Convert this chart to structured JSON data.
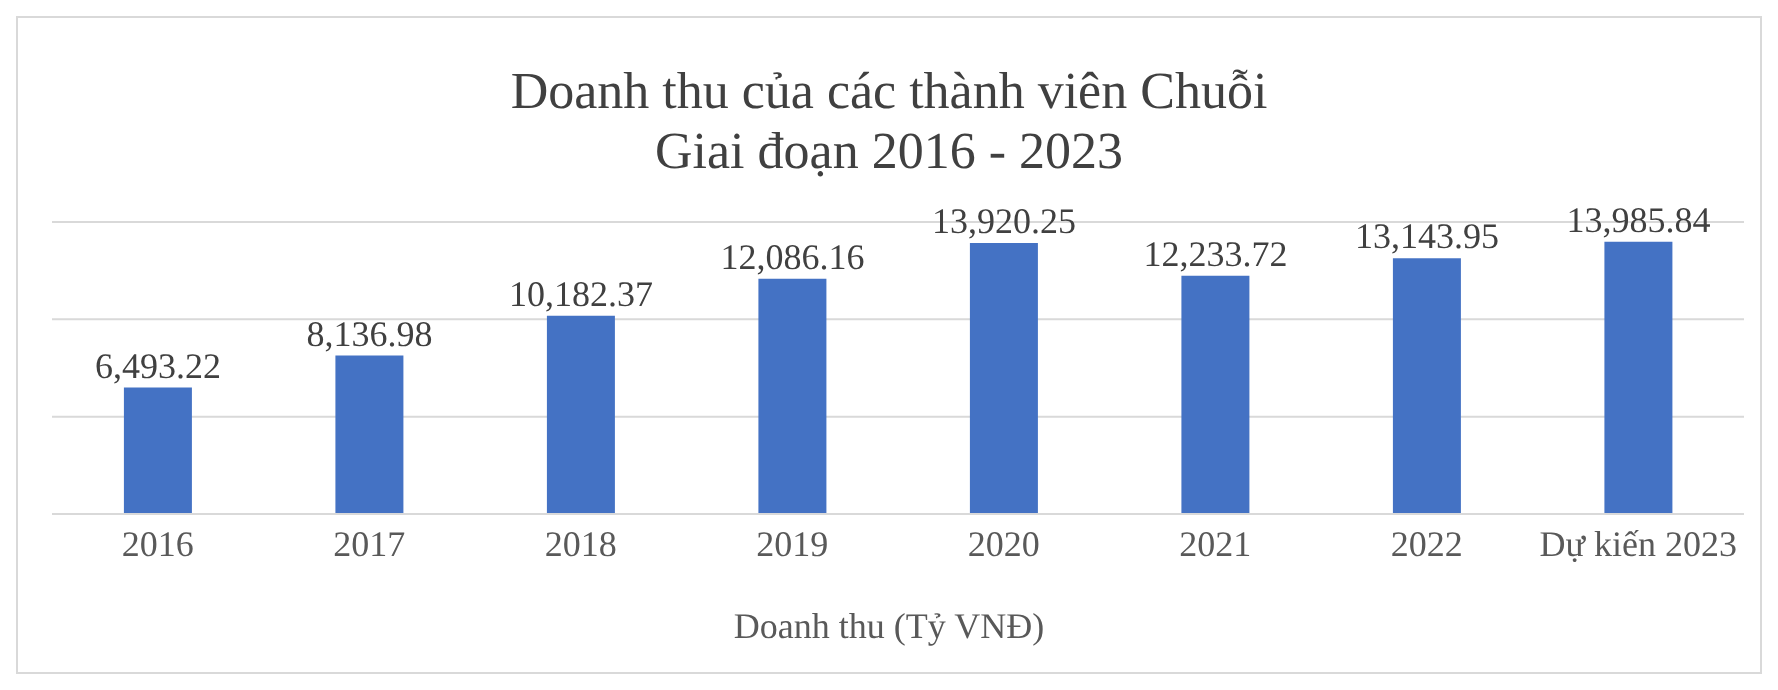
{
  "chart_data": {
    "type": "bar",
    "title": "Doanh thu của các thành viên Chuỗi\nGiai đoạn 2016 - 2023",
    "xlabel": "Doanh thu (Tỷ VNĐ)",
    "categories": [
      "2016",
      "2017",
      "2018",
      "2019",
      "2020",
      "2021",
      "2022",
      "Dự kiến 2023"
    ],
    "values": [
      6493.22,
      8136.98,
      10182.37,
      12086.16,
      13920.25,
      12233.72,
      13143.95,
      13985.84
    ],
    "value_labels": [
      "6,493.22",
      "8,136.98",
      "10,182.37",
      "12,086.16",
      "13,920.25",
      "12,233.72",
      "13,143.95",
      "13,985.84"
    ],
    "color": "#4472c4",
    "ylim": [
      0,
      15000
    ],
    "yticks": [
      {
        "value": 0,
        "label": null
      },
      {
        "value": 5000,
        "label": null
      },
      {
        "value": 10000,
        "label": null
      },
      {
        "value": 15000,
        "label": null
      }
    ],
    "grid": "y",
    "tick_labels": "x"
  }
}
